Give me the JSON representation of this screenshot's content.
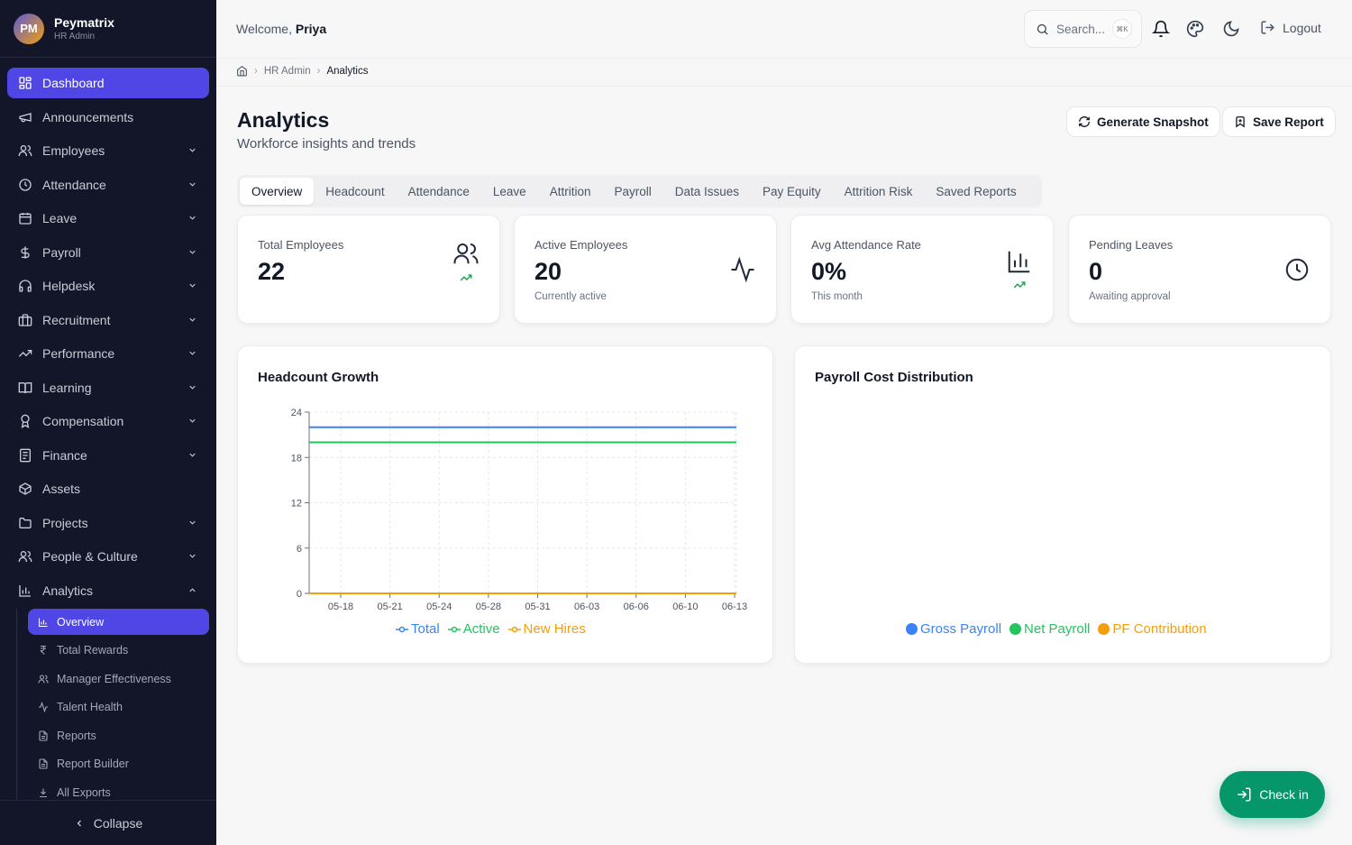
{
  "brand": {
    "initials": "PM",
    "name": "Peymatrix",
    "role": "HR Admin"
  },
  "nav": {
    "items": [
      {
        "label": "Dashboard",
        "icon": "grid-icon"
      },
      {
        "label": "Announcements",
        "icon": "megaphone-icon"
      },
      {
        "label": "Employees",
        "icon": "users-icon"
      },
      {
        "label": "Attendance",
        "icon": "clock-icon"
      },
      {
        "label": "Leave",
        "icon": "calendar-icon"
      },
      {
        "label": "Payroll",
        "icon": "dollar-icon"
      },
      {
        "label": "Helpdesk",
        "icon": "headphones-icon"
      },
      {
        "label": "Recruitment",
        "icon": "briefcase-icon"
      },
      {
        "label": "Performance",
        "icon": "trending-up-icon"
      },
      {
        "label": "Learning",
        "icon": "book-icon"
      },
      {
        "label": "Compensation",
        "icon": "award-icon"
      },
      {
        "label": "Finance",
        "icon": "receipt-icon"
      },
      {
        "label": "Assets",
        "icon": "box-icon"
      },
      {
        "label": "Projects",
        "icon": "folder-icon"
      },
      {
        "label": "People & Culture",
        "icon": "users-icon"
      },
      {
        "label": "Analytics",
        "icon": "bar-chart-icon"
      }
    ],
    "analytics_sub": [
      {
        "label": "Overview",
        "icon": "bar-chart-icon"
      },
      {
        "label": "Total Rewards",
        "icon": "rupee-icon"
      },
      {
        "label": "Manager Effectiveness",
        "icon": "users-icon"
      },
      {
        "label": "Talent Health",
        "icon": "activity-icon"
      },
      {
        "label": "Reports",
        "icon": "file-icon"
      },
      {
        "label": "Report Builder",
        "icon": "file-icon"
      },
      {
        "label": "All Exports",
        "icon": "download-icon"
      }
    ],
    "collapse": "Collapse"
  },
  "topbar": {
    "welcome_prefix": "Welcome, ",
    "user_name": "Priya",
    "search_placeholder": "Search...",
    "search_shortcut": "⌘K",
    "logout": "Logout"
  },
  "breadcrumb": {
    "parent": "HR Admin",
    "current": "Analytics"
  },
  "page": {
    "title": "Analytics",
    "subtitle": "Workforce insights and trends",
    "generate_snapshot": "Generate Snapshot",
    "save_report": "Save Report"
  },
  "tabs": [
    "Overview",
    "Headcount",
    "Attendance",
    "Leave",
    "Attrition",
    "Payroll",
    "Data Issues",
    "Pay Equity",
    "Attrition Risk",
    "Saved Reports"
  ],
  "stats": [
    {
      "label": "Total Employees",
      "value": "22",
      "note": "",
      "icon": "users-icon",
      "trend": true
    },
    {
      "label": "Active Employees",
      "value": "20",
      "note": "Currently active",
      "icon": "activity-icon",
      "trend": false
    },
    {
      "label": "Avg Attendance Rate",
      "value": "0%",
      "note": "This month",
      "icon": "bar-chart-icon",
      "trend": true
    },
    {
      "label": "Pending Leaves",
      "value": "0",
      "note": "Awaiting approval",
      "icon": "clock-icon",
      "trend": false
    }
  ],
  "headcount_panel": {
    "title": "Headcount Growth"
  },
  "payroll_panel": {
    "title": "Payroll Cost Distribution"
  },
  "chart_data": [
    {
      "type": "line",
      "title": "Headcount Growth",
      "x": [
        "05-18",
        "05-21",
        "05-24",
        "05-28",
        "05-31",
        "06-03",
        "06-06",
        "06-10",
        "06-13"
      ],
      "ylim": [
        0,
        24
      ],
      "yticks": [
        0,
        6,
        12,
        18,
        24
      ],
      "grid": true,
      "legend": "bottom",
      "series": [
        {
          "name": "Total",
          "color": "#3b82f6",
          "values": [
            22,
            22,
            22,
            22,
            22,
            22,
            22,
            22,
            22
          ]
        },
        {
          "name": "Active",
          "color": "#22c55e",
          "values": [
            20,
            20,
            20,
            20,
            20,
            20,
            20,
            20,
            20
          ]
        },
        {
          "name": "New Hires",
          "color": "#f59e0b",
          "values": [
            0,
            0,
            0,
            0,
            0,
            0,
            0,
            0,
            0
          ]
        }
      ]
    },
    {
      "type": "pie",
      "title": "Payroll Cost Distribution",
      "legend": "bottom",
      "series": [
        {
          "name": "Gross Payroll",
          "color": "#3b82f6",
          "values": []
        },
        {
          "name": "Net Payroll",
          "color": "#22c55e",
          "values": []
        },
        {
          "name": "PF Contribution",
          "color": "#f59e0b",
          "values": []
        }
      ]
    }
  ],
  "checkin": "Check in",
  "colors": {
    "accent": "#4f46e5",
    "sidebar_bg": "#121628",
    "success": "#059669"
  }
}
